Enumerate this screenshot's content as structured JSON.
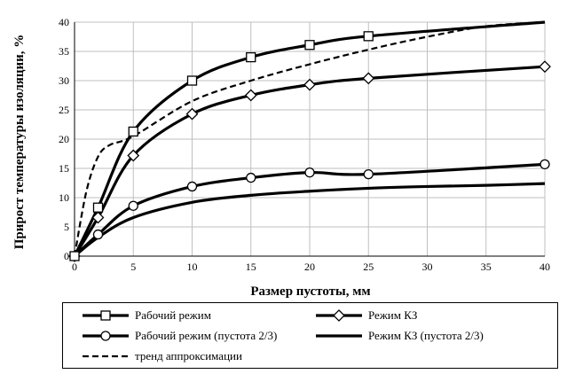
{
  "chart_data": {
    "type": "line",
    "title": "",
    "xlabel": "Размер пустоты, мм",
    "ylabel": "Прирост температуры изоляции, %",
    "xlim": [
      0,
      40
    ],
    "ylim": [
      0,
      40
    ],
    "xticks": [
      0,
      5,
      10,
      15,
      20,
      25,
      30,
      35,
      40
    ],
    "yticks": [
      0,
      5,
      10,
      15,
      20,
      25,
      30,
      35,
      40
    ],
    "grid": true,
    "legend_position": "bottom",
    "series": [
      {
        "name": "Рабочий режим",
        "marker": "square",
        "style": "solid",
        "x": [
          0,
          2,
          5,
          10,
          15,
          20,
          25,
          40
        ],
        "y": [
          0,
          8.3,
          21.3,
          30,
          34,
          36.1,
          37.6,
          40
        ],
        "markers_at": [
          0,
          2,
          5,
          10,
          15,
          20,
          25
        ]
      },
      {
        "name": "Режим КЗ",
        "marker": "diamond",
        "style": "solid",
        "x": [
          0,
          2,
          5,
          10,
          15,
          20,
          25,
          40
        ],
        "y": [
          0,
          6.6,
          17.2,
          24.3,
          27.5,
          29.3,
          30.4,
          32.4
        ],
        "markers_at": [
          0,
          2,
          5,
          10,
          15,
          20,
          25,
          40
        ]
      },
      {
        "name": "Рабочий режим (пустота 2/3)",
        "marker": "circle",
        "style": "solid",
        "x": [
          0,
          2,
          5,
          10,
          15,
          20,
          25,
          40
        ],
        "y": [
          0,
          3.7,
          8.6,
          11.9,
          13.4,
          14.3,
          14,
          15.7
        ],
        "markers_at": [
          0,
          2,
          5,
          10,
          15,
          20,
          25,
          40
        ]
      },
      {
        "name": "Режим КЗ (пустота 2/3)",
        "marker": "none",
        "style": "solid",
        "x": [
          0,
          2,
          5,
          10,
          15,
          20,
          25,
          30,
          35,
          40
        ],
        "y": [
          0,
          3.2,
          6.6,
          9.2,
          10.4,
          11.1,
          11.6,
          11.9,
          12.1,
          12.4
        ],
        "markers_at": []
      },
      {
        "name": "тренд аппроксимации",
        "marker": "none",
        "style": "dashed",
        "x": [
          0,
          1,
          2,
          3,
          5,
          10,
          15,
          20,
          25,
          30,
          35,
          40
        ],
        "y": [
          0,
          11,
          17,
          19,
          20.5,
          26.5,
          30,
          32.8,
          35.3,
          37.5,
          39.3,
          40
        ],
        "markers_at": []
      }
    ]
  }
}
